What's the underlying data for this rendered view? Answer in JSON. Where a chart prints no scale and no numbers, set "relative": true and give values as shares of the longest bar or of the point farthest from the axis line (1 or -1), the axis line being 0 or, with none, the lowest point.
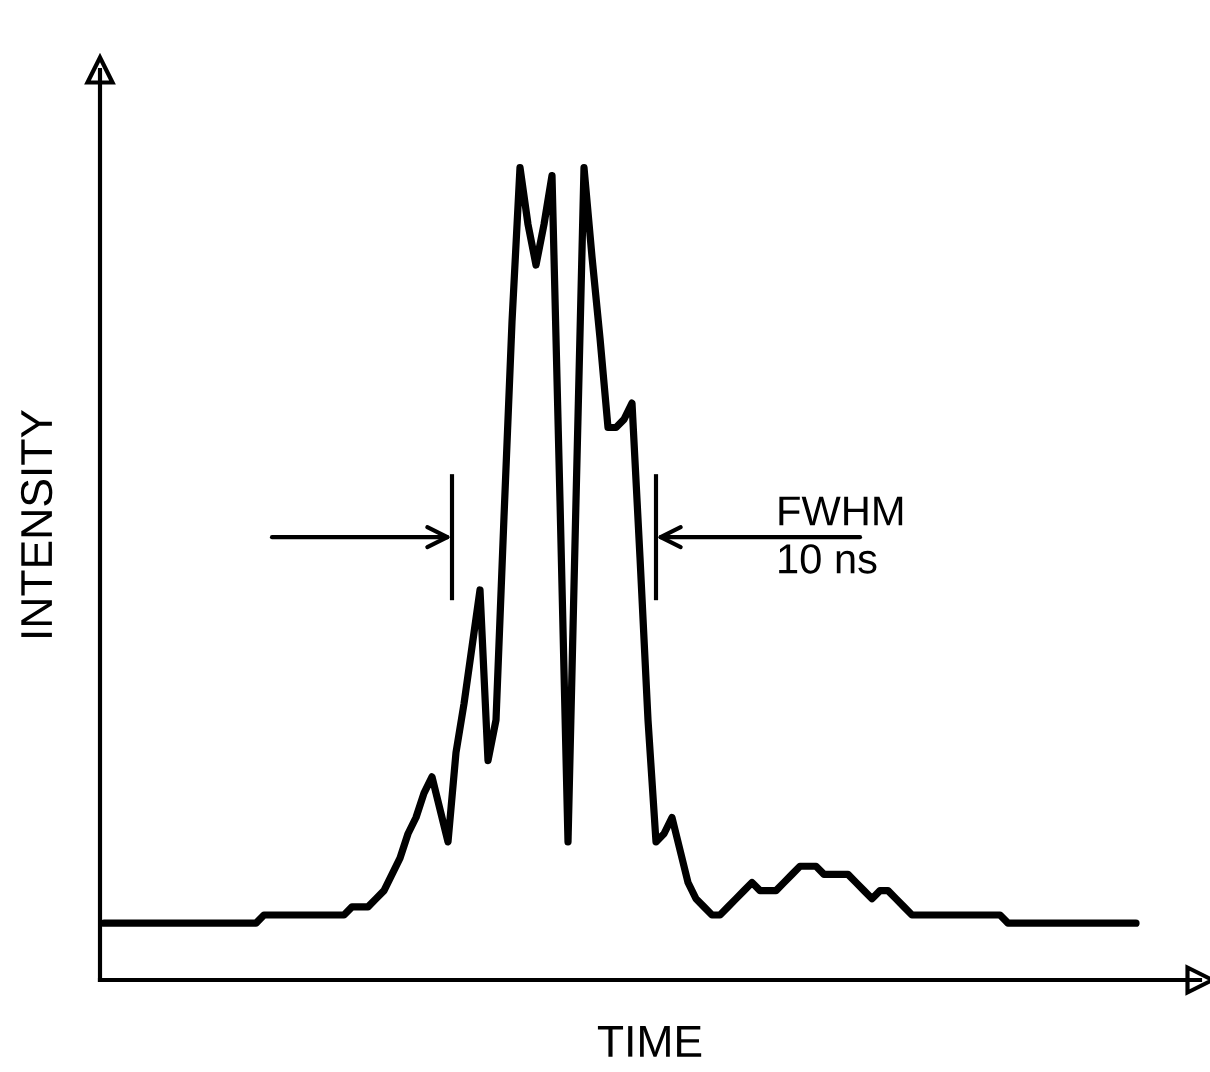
{
  "chart_data": {
    "type": "line",
    "relative": true,
    "xlabel": "TIME",
    "ylabel": "INTENSITY",
    "annotations": [
      "FWHM\n10 ns"
    ],
    "categories": [
      null,
      null,
      null,
      null,
      null,
      null,
      null,
      null,
      null,
      null,
      null,
      null,
      null,
      null,
      null,
      null,
      null,
      null,
      null,
      null,
      null,
      null,
      null,
      null,
      null,
      null,
      null,
      null,
      null,
      null,
      null,
      null,
      null,
      null,
      null,
      null,
      null,
      null,
      null,
      null,
      null,
      null,
      null,
      null,
      null,
      null,
      null,
      null,
      null,
      null,
      null,
      null,
      null,
      null,
      null,
      null,
      null,
      null,
      null,
      null,
      null,
      null,
      null,
      null,
      null,
      null,
      null,
      null,
      null,
      null,
      null,
      null,
      null,
      null,
      null,
      null,
      null,
      null,
      null,
      null,
      null,
      null,
      null,
      null,
      null,
      null,
      null,
      null,
      null,
      null,
      null,
      null,
      null,
      null,
      null,
      null,
      null,
      null,
      null,
      null,
      null,
      null,
      null,
      null,
      null,
      null,
      null,
      null,
      null,
      null,
      null,
      null,
      null,
      null,
      null,
      null,
      null,
      null,
      null,
      null,
      null,
      null,
      null,
      null,
      null,
      null,
      null,
      null,
      null,
      null
    ],
    "series": [
      {
        "color": "#000000",
        "values": [
          0.07,
          0.07,
          0.07,
          0.07,
          0.07,
          0.07,
          0.07,
          0.07,
          0.07,
          0.07,
          0.07,
          0.07,
          0.07,
          0.07,
          0.07,
          0.07,
          0.07,
          0.07,
          0.07,
          0.07,
          0.08,
          0.08,
          0.08,
          0.08,
          0.08,
          0.08,
          0.08,
          0.08,
          0.08,
          0.08,
          0.08,
          0.09,
          0.09,
          0.09,
          0.1,
          0.11,
          0.13,
          0.15,
          0.18,
          0.2,
          0.23,
          0.25,
          0.21,
          0.17,
          0.28,
          0.34,
          0.41,
          0.48,
          0.27,
          0.32,
          0.57,
          0.81,
          1.0,
          0.93,
          0.88,
          0.93,
          0.99,
          0.59,
          0.17,
          0.59,
          1.0,
          0.89,
          0.79,
          0.68,
          0.68,
          0.69,
          0.71,
          0.52,
          0.32,
          0.17,
          0.18,
          0.2,
          0.16,
          0.12,
          0.1,
          0.09,
          0.08,
          0.08,
          0.09,
          0.1,
          0.11,
          0.12,
          0.11,
          0.11,
          0.11,
          0.12,
          0.13,
          0.14,
          0.14,
          0.14,
          0.13,
          0.13,
          0.13,
          0.13,
          0.12,
          0.11,
          0.1,
          0.11,
          0.11,
          0.1,
          0.09,
          0.08,
          0.08,
          0.08,
          0.08,
          0.08,
          0.08,
          0.08,
          0.08,
          0.08,
          0.08,
          0.08,
          0.08,
          0.07,
          0.07,
          0.07,
          0.07,
          0.07,
          0.07,
          0.07,
          0.07,
          0.07,
          0.07,
          0.07,
          0.07,
          0.07,
          0.07,
          0.07,
          0.07,
          0.07
        ]
      }
    ]
  }
}
